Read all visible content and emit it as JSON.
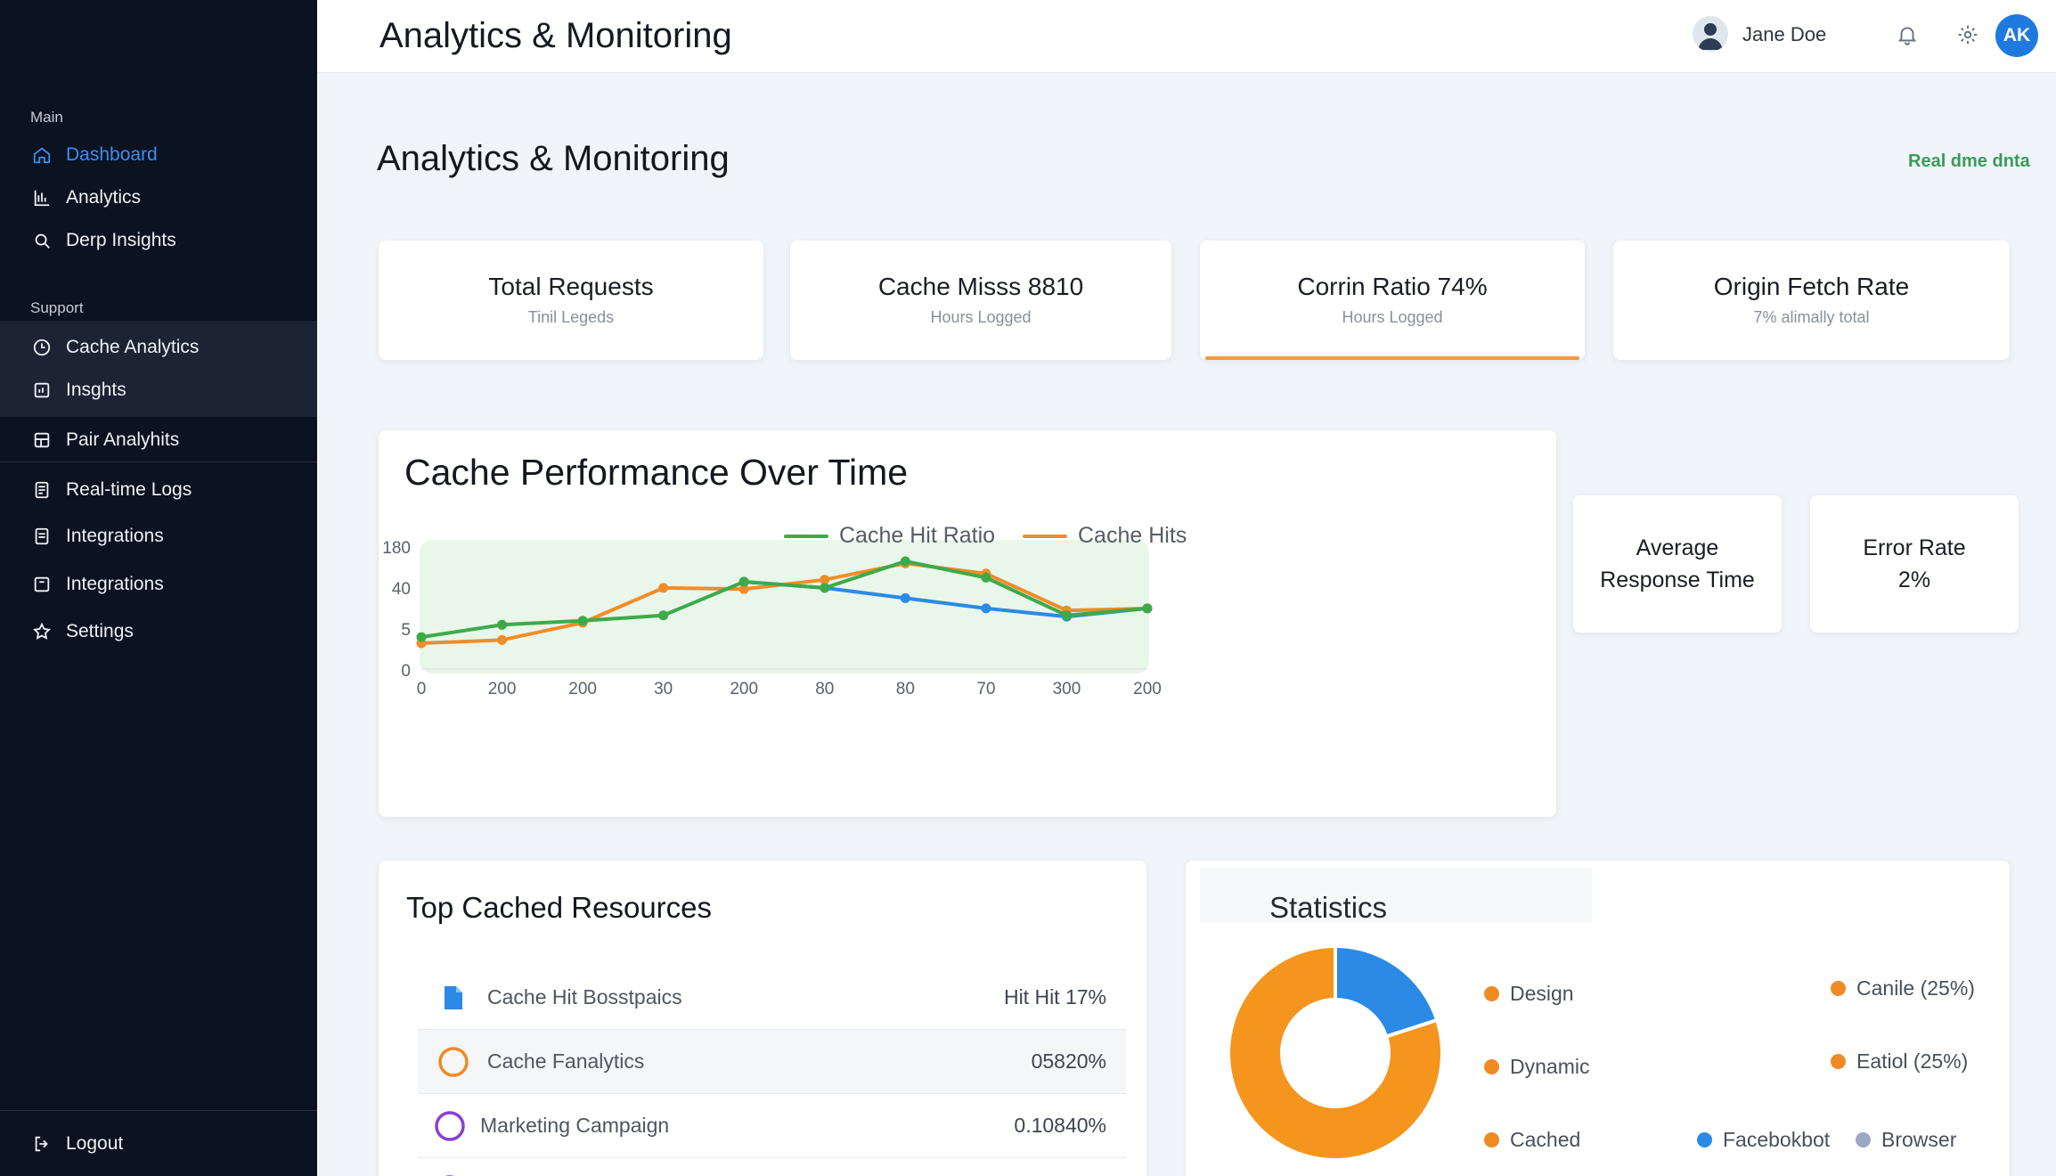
{
  "sidebar": {
    "section_main": "Main",
    "section_support": "Support",
    "items": [
      {
        "label": "Dashboard"
      },
      {
        "label": "Analytics"
      },
      {
        "label": "Derp Insights"
      },
      {
        "label": "Cache Analytics"
      },
      {
        "label": "Insghts"
      },
      {
        "label": "Pair Analyhits"
      },
      {
        "label": "Real-time Logs"
      },
      {
        "label": "Integrations"
      },
      {
        "label": "Integrations"
      },
      {
        "label": "Settings"
      }
    ],
    "logout": "Logout"
  },
  "header": {
    "title": "Analytics & Monitoring",
    "user_name": "Jane Doe",
    "avatar_initials": "AK"
  },
  "main": {
    "title": "Analytics & Monitoring",
    "realtime_label": "Real dme dnta",
    "stats": [
      {
        "title": "Total Requests",
        "subtitle": "Tinil Legeds"
      },
      {
        "title": "Cache Misss 8810",
        "subtitle": "Hours Logged"
      },
      {
        "title": "Corrin Ratio 74%",
        "subtitle": "Hours Logged"
      },
      {
        "title": "Origin Fetch Rate",
        "subtitle": "7% alimally total"
      }
    ],
    "mini_cards": [
      {
        "line1": "Average",
        "line2": "Response Time"
      },
      {
        "line1": "Error Rate",
        "line2": "2%"
      }
    ]
  },
  "chart_data": {
    "type": "line",
    "title": "Cache Performance Over Time",
    "x_tick_labels": [
      "0",
      "200",
      "200",
      "30",
      "200",
      "80",
      "80",
      "70",
      "300",
      "200"
    ],
    "y_tick_labels": [
      "0",
      "5",
      "40",
      "180"
    ],
    "y_scale": "categorical-ticks",
    "grid": false,
    "legend_position": "top",
    "series": [
      {
        "name": "Cache Hit Ratio",
        "color": "#3daa4a",
        "values": [
          0.65,
          0.95,
          1.05,
          1.18,
          2.0,
          1.85,
          2.5,
          2.1,
          1.18,
          1.35
        ]
      },
      {
        "name": "Cache Hits",
        "color": "#f28c28",
        "values": [
          0.5,
          0.58,
          1.0,
          1.85,
          1.82,
          2.05,
          2.45,
          2.2,
          1.3,
          1.35
        ]
      },
      {
        "name": "",
        "color": "#2a8ae6",
        "values": [
          null,
          null,
          null,
          null,
          2.0,
          1.85,
          1.6,
          1.35,
          1.15,
          1.35
        ]
      }
    ]
  },
  "resources": {
    "title": "Top Cached Resources",
    "rows": [
      {
        "name": "Cache Hit Bosstpaics",
        "value": "Hit Hit 17%",
        "icon": "file-icon",
        "color": "#2a8ae6"
      },
      {
        "name": "Cache Fanalytics",
        "value": "05820%",
        "icon": "circle-icon",
        "color": "#f08a24"
      },
      {
        "name": "Marketing Campaign",
        "value": "0.10840%",
        "icon": "circle-icon",
        "color": "#8a3fd1"
      }
    ]
  },
  "statistics": {
    "title": "Statistics",
    "donut": [
      {
        "label": "Blue segment",
        "value": 20,
        "color": "#2a8ae6"
      },
      {
        "label": "Orange segment",
        "value": 80,
        "color": "#f5951e"
      }
    ],
    "legend": [
      {
        "label": "Design",
        "color": "#f08a24"
      },
      {
        "label": "Dynamic",
        "color": "#f08a24"
      },
      {
        "label": "Cached",
        "color": "#f08a24"
      },
      {
        "label": "Canile (25%)",
        "color": "#f08a24"
      },
      {
        "label": "Eatiol (25%)",
        "color": "#f08a24"
      },
      {
        "label": "Facebokbot",
        "color": "#2a8ae6"
      },
      {
        "label": "Browser",
        "color": "#9aa8c6"
      }
    ]
  }
}
